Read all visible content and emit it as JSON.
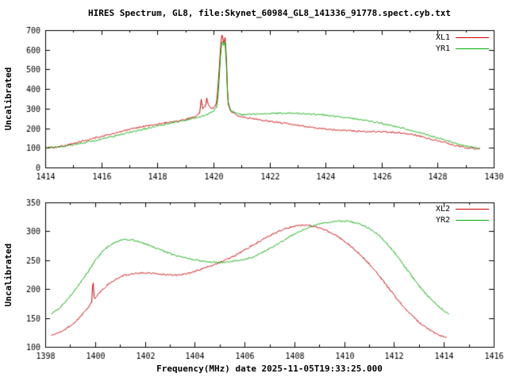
{
  "page": {
    "background": "#ffffff",
    "text_color": "#000000",
    "axis_color": "#000000"
  },
  "chart_data": [
    {
      "type": "line",
      "title": "HIRES Spectrum, GL8, file:Skynet_60984_GL8_141336_91778.spect.cyb.txt",
      "ylabel": "Uncalibrated",
      "xlabel": "",
      "xlim": [
        1414,
        1430
      ],
      "ylim": [
        0,
        700
      ],
      "xtick_step": 2,
      "xtick_minor_step": 1,
      "ytick_step": 100,
      "grid": false,
      "legend_position": "top-right",
      "series": [
        {
          "name": "XL1",
          "color": "#cc0000",
          "noise": 2,
          "points": [
            [
              1414.0,
              100
            ],
            [
              1414.3,
              102
            ],
            [
              1414.6,
              108
            ],
            [
              1415.0,
              122
            ],
            [
              1415.4,
              138
            ],
            [
              1415.8,
              152
            ],
            [
              1416.2,
              165
            ],
            [
              1416.6,
              180
            ],
            [
              1417.0,
              195
            ],
            [
              1417.4,
              207
            ],
            [
              1417.8,
              217
            ],
            [
              1418.2,
              226
            ],
            [
              1418.6,
              234
            ],
            [
              1419.0,
              246
            ],
            [
              1419.3,
              258
            ],
            [
              1419.5,
              278
            ],
            [
              1419.55,
              345
            ],
            [
              1419.6,
              300
            ],
            [
              1419.7,
              310
            ],
            [
              1419.75,
              355
            ],
            [
              1419.8,
              320
            ],
            [
              1419.9,
              298
            ],
            [
              1420.0,
              305
            ],
            [
              1420.1,
              330
            ],
            [
              1420.15,
              420
            ],
            [
              1420.2,
              520
            ],
            [
              1420.25,
              640
            ],
            [
              1420.3,
              685
            ],
            [
              1420.35,
              630
            ],
            [
              1420.4,
              660
            ],
            [
              1420.45,
              560
            ],
            [
              1420.5,
              330
            ],
            [
              1420.6,
              285
            ],
            [
              1420.8,
              268
            ],
            [
              1421.0,
              258
            ],
            [
              1421.4,
              248
            ],
            [
              1421.8,
              240
            ],
            [
              1422.2,
              232
            ],
            [
              1422.6,
              224
            ],
            [
              1423.0,
              215
            ],
            [
              1423.4,
              207
            ],
            [
              1423.8,
              199
            ],
            [
              1424.2,
              193
            ],
            [
              1424.6,
              189
            ],
            [
              1425.0,
              186
            ],
            [
              1425.4,
              184
            ],
            [
              1425.8,
              182
            ],
            [
              1426.2,
              180
            ],
            [
              1426.6,
              177
            ],
            [
              1427.0,
              170
            ],
            [
              1427.4,
              158
            ],
            [
              1427.8,
              143
            ],
            [
              1428.2,
              128
            ],
            [
              1428.6,
              112
            ],
            [
              1429.0,
              100
            ],
            [
              1429.3,
              96
            ],
            [
              1429.5,
              95
            ]
          ]
        },
        {
          "name": "YR1",
          "color": "#00aa00",
          "noise": 2,
          "points": [
            [
              1414.0,
              98
            ],
            [
              1414.4,
              104
            ],
            [
              1414.8,
              112
            ],
            [
              1415.2,
              122
            ],
            [
              1415.6,
              133
            ],
            [
              1416.0,
              145
            ],
            [
              1416.4,
              158
            ],
            [
              1416.8,
              172
            ],
            [
              1417.2,
              186
            ],
            [
              1417.6,
              199
            ],
            [
              1418.0,
              212
            ],
            [
              1418.4,
              224
            ],
            [
              1418.8,
              236
            ],
            [
              1419.2,
              248
            ],
            [
              1419.5,
              258
            ],
            [
              1419.8,
              272
            ],
            [
              1420.0,
              288
            ],
            [
              1420.1,
              305
            ],
            [
              1420.15,
              360
            ],
            [
              1420.2,
              470
            ],
            [
              1420.25,
              590
            ],
            [
              1420.3,
              655
            ],
            [
              1420.35,
              615
            ],
            [
              1420.4,
              640
            ],
            [
              1420.45,
              520
            ],
            [
              1420.5,
              340
            ],
            [
              1420.6,
              290
            ],
            [
              1420.8,
              275
            ],
            [
              1421.0,
              270
            ],
            [
              1421.5,
              272
            ],
            [
              1422.0,
              275
            ],
            [
              1422.5,
              277
            ],
            [
              1423.0,
              276
            ],
            [
              1423.5,
              272
            ],
            [
              1424.0,
              266
            ],
            [
              1424.5,
              258
            ],
            [
              1425.0,
              248
            ],
            [
              1425.5,
              237
            ],
            [
              1426.0,
              224
            ],
            [
              1426.5,
              209
            ],
            [
              1427.0,
              192
            ],
            [
              1427.5,
              172
            ],
            [
              1428.0,
              150
            ],
            [
              1428.4,
              132
            ],
            [
              1428.8,
              116
            ],
            [
              1429.2,
              103
            ],
            [
              1429.5,
              97
            ]
          ]
        }
      ]
    },
    {
      "type": "line",
      "title": "",
      "ylabel": "Uncalibrated",
      "xlabel": "Frequency(MHz) date 2025-11-05T19:33:25.000",
      "xlim": [
        1398,
        1416
      ],
      "ylim": [
        100,
        350
      ],
      "xtick_step": 2,
      "xtick_minor_step": 1,
      "ytick_step": 50,
      "grid": false,
      "legend_position": "top-right",
      "series": [
        {
          "name": "XL2",
          "color": "#cc0000",
          "noise": 2,
          "points": [
            [
              1398.2,
              120
            ],
            [
              1398.5,
              124
            ],
            [
              1398.8,
              131
            ],
            [
              1399.1,
              140
            ],
            [
              1399.4,
              152
            ],
            [
              1399.7,
              168
            ],
            [
              1399.85,
              178
            ],
            [
              1399.9,
              220
            ],
            [
              1399.95,
              182
            ],
            [
              1400.2,
              196
            ],
            [
              1400.5,
              208
            ],
            [
              1400.8,
              217
            ],
            [
              1401.1,
              223
            ],
            [
              1401.4,
              226
            ],
            [
              1401.7,
              228
            ],
            [
              1402.0,
              228
            ],
            [
              1402.4,
              227
            ],
            [
              1402.8,
              225
            ],
            [
              1403.2,
              224
            ],
            [
              1403.6,
              226
            ],
            [
              1404.0,
              231
            ],
            [
              1404.4,
              237
            ],
            [
              1404.8,
              243
            ],
            [
              1405.2,
              250
            ],
            [
              1405.6,
              258
            ],
            [
              1406.0,
              268
            ],
            [
              1406.4,
              278
            ],
            [
              1406.8,
              288
            ],
            [
              1407.2,
              297
            ],
            [
              1407.6,
              304
            ],
            [
              1408.0,
              309
            ],
            [
              1408.3,
              311
            ],
            [
              1408.6,
              310
            ],
            [
              1409.0,
              306
            ],
            [
              1409.4,
              299
            ],
            [
              1409.8,
              289
            ],
            [
              1410.2,
              276
            ],
            [
              1410.6,
              261
            ],
            [
              1411.0,
              243
            ],
            [
              1411.4,
              222
            ],
            [
              1411.8,
              200
            ],
            [
              1412.2,
              178
            ],
            [
              1412.6,
              158
            ],
            [
              1413.0,
              142
            ],
            [
              1413.4,
              129
            ],
            [
              1413.8,
              120
            ],
            [
              1414.1,
              116
            ]
          ]
        },
        {
          "name": "YR2",
          "color": "#00aa00",
          "noise": 2,
          "points": [
            [
              1398.2,
              156
            ],
            [
              1398.5,
              165
            ],
            [
              1398.8,
              178
            ],
            [
              1399.1,
              194
            ],
            [
              1399.4,
              212
            ],
            [
              1399.7,
              230
            ],
            [
              1400.0,
              250
            ],
            [
              1400.3,
              266
            ],
            [
              1400.6,
              277
            ],
            [
              1400.9,
              283
            ],
            [
              1401.2,
              286
            ],
            [
              1401.5,
              285
            ],
            [
              1401.8,
              281
            ],
            [
              1402.2,
              275
            ],
            [
              1402.6,
              268
            ],
            [
              1403.0,
              261
            ],
            [
              1403.4,
              256
            ],
            [
              1403.8,
              252
            ],
            [
              1404.2,
              249
            ],
            [
              1404.6,
              247
            ],
            [
              1405.0,
              246
            ],
            [
              1405.4,
              247
            ],
            [
              1405.8,
              250
            ],
            [
              1406.2,
              254
            ],
            [
              1406.6,
              261
            ],
            [
              1407.0,
              270
            ],
            [
              1407.4,
              280
            ],
            [
              1407.8,
              291
            ],
            [
              1408.2,
              300
            ],
            [
              1408.6,
              308
            ],
            [
              1409.0,
              313
            ],
            [
              1409.4,
              316
            ],
            [
              1409.8,
              318
            ],
            [
              1410.2,
              317
            ],
            [
              1410.6,
              313
            ],
            [
              1411.0,
              305
            ],
            [
              1411.4,
              292
            ],
            [
              1411.8,
              274
            ],
            [
              1412.2,
              252
            ],
            [
              1412.6,
              228
            ],
            [
              1413.0,
              205
            ],
            [
              1413.4,
              185
            ],
            [
              1413.8,
              169
            ],
            [
              1414.2,
              156
            ]
          ]
        }
      ]
    }
  ]
}
